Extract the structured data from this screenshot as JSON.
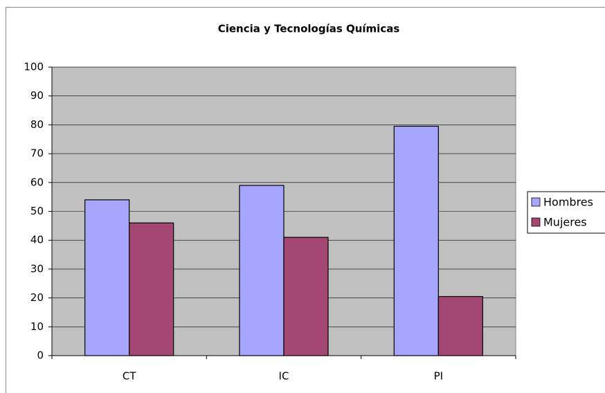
{
  "chart_data": {
    "type": "bar",
    "title": "Ciencia y Tecnologías Químicas",
    "categories": [
      "CT",
      "IC",
      "PI"
    ],
    "series": [
      {
        "name": "Hombres",
        "color": "#a6a6ff",
        "values": [
          54,
          59,
          79.5
        ]
      },
      {
        "name": "Mujeres",
        "color": "#a44873",
        "values": [
          46,
          41,
          20.5
        ]
      }
    ],
    "ylim": [
      0,
      100
    ],
    "yticks": [
      0,
      10,
      20,
      30,
      40,
      50,
      60,
      70,
      80,
      90,
      100
    ],
    "grid": true,
    "legend": "right",
    "plot_background": "#c0c0c0"
  }
}
